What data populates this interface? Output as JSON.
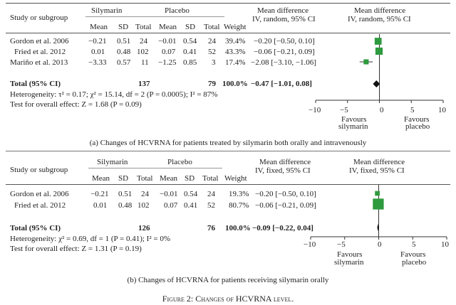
{
  "panels": [
    {
      "headers": {
        "study": "Study or subgroup",
        "silymarin": "Silymarin",
        "placebo": "Placebo",
        "md": "Mean difference",
        "md_sub": "IV, random, 95% CI",
        "plot_md": "Mean difference",
        "plot_sub": "IV, random, 95% CI",
        "mean": "Mean",
        "sd": "SD",
        "total": "Total",
        "weight": "Weight"
      },
      "rows": [
        {
          "study": "Gordon et al. 2006",
          "s_mean": "−0.21",
          "s_sd": "0.51",
          "s_total": "24",
          "p_mean": "−0.01",
          "p_sd": "0.54",
          "p_total": "24",
          "weight": "39.4%",
          "ci": "−0.20 [−0.50, 0.10]"
        },
        {
          "study": "Fried et al. 2012",
          "s_mean": "0.01",
          "s_sd": "0.48",
          "s_total": "102",
          "p_mean": "0.07",
          "p_sd": "0.41",
          "p_total": "52",
          "weight": "43.3%",
          "ci": "−0.06 [−0.21, 0.09]"
        },
        {
          "study": "Mariño et al. 2013",
          "s_mean": "−3.33",
          "s_sd": "0.57",
          "s_total": "11",
          "p_mean": "−1.25",
          "p_sd": "0.85",
          "p_total": "3",
          "weight": "17.4%",
          "ci": "−2.08 [−3.10, −1.06]"
        }
      ],
      "total": {
        "label": "Total (95% CI)",
        "s_total": "137",
        "p_total": "79",
        "weight": "100.0%",
        "ci": "−0.47 [−1.01, 0.08]"
      },
      "heterogeneity": "Heterogeneity: τ² = 0.17; χ² = 15.14,  df = 2 (P = 0.0005); I² = 87%",
      "overall": "Test for overall effect: Z = 1.68 (P = 0.09)",
      "axis": {
        "ticks": [
          "−10",
          "−5",
          "0",
          "5",
          "10"
        ],
        "favours_left": "Favours",
        "favours_left2": "silymarin",
        "favours_right": "Favours",
        "favours_right2": "placebo"
      },
      "caption": "(a)  Changes of HCVRNA for patients treated by silymarin both orally and intravenously"
    },
    {
      "headers": {
        "study": "Study or subgroup",
        "silymarin": "Silymarin",
        "placebo": "Placebo",
        "md": "Mean difference",
        "md_sub": "IV, fixed, 95% CI",
        "plot_md": "Mean difference",
        "plot_sub": "IV, fixed, 95% CI",
        "mean": "Mean",
        "sd": "SD",
        "total": "Total",
        "weight": "Weight"
      },
      "rows": [
        {
          "study": "Gordon et al. 2006",
          "s_mean": "−0.21",
          "s_sd": "0.51",
          "s_total": "24",
          "p_mean": "−0.01",
          "p_sd": "0.54",
          "p_total": "24",
          "weight": "19.3%",
          "ci": "−0.20 [−0.50, 0.10]"
        },
        {
          "study": "Fried et al. 2012",
          "s_mean": "0.01",
          "s_sd": "0.48",
          "s_total": "102",
          "p_mean": "0.07",
          "p_sd": "0.41",
          "p_total": "52",
          "weight": "80.7%",
          "ci": "−0.06 [−0.21, 0.09]"
        }
      ],
      "total": {
        "label": "Total (95% CI)",
        "s_total": "126",
        "p_total": "76",
        "weight": "100.0%",
        "ci": "−0.09 [−0.22, 0.04]"
      },
      "heterogeneity": "Heterogeneity: χ² = 0.69,  df = 1 (P = 0.41); I² = 0%",
      "overall": "Test for overall effect: Z = 1.31 (P = 0.19)",
      "axis": {
        "ticks": [
          "−10",
          "−5",
          "0",
          "5",
          "10"
        ],
        "favours_left": "Favours",
        "favours_left2": "silymarin",
        "favours_right": "Favours",
        "favours_right2": "placebo"
      },
      "caption": "(b)  Changes of HCVRNA for patients receiving silymarin orally"
    }
  ],
  "figure_caption": "Figure 2: Changes of HCVRNA level.",
  "chart_data": [
    {
      "type": "scatter",
      "xlim": [
        -10,
        10
      ],
      "series": [
        {
          "points": [
            {
              "label": "Gordon et al. 2006",
              "md": -0.2,
              "lo": -0.5,
              "hi": 0.1,
              "weight": 39.4
            },
            {
              "label": "Fried et al. 2012",
              "md": -0.06,
              "lo": -0.21,
              "hi": 0.09,
              "weight": 43.3
            },
            {
              "label": "Mariño et al. 2013",
              "md": -2.08,
              "lo": -3.1,
              "hi": -1.06,
              "weight": 17.4
            }
          ],
          "total": {
            "md": -0.47,
            "lo": -1.01,
            "hi": 0.08
          }
        }
      ],
      "color": "#2e9a3e"
    },
    {
      "type": "scatter",
      "xlim": [
        -10,
        10
      ],
      "series": [
        {
          "points": [
            {
              "label": "Gordon et al. 2006",
              "md": -0.2,
              "lo": -0.5,
              "hi": 0.1,
              "weight": 19.3
            },
            {
              "label": "Fried et al. 2012",
              "md": -0.06,
              "lo": -0.21,
              "hi": 0.09,
              "weight": 80.7
            }
          ],
          "total": {
            "md": -0.09,
            "lo": -0.22,
            "hi": 0.04
          }
        }
      ],
      "color": "#2e9a3e"
    }
  ]
}
